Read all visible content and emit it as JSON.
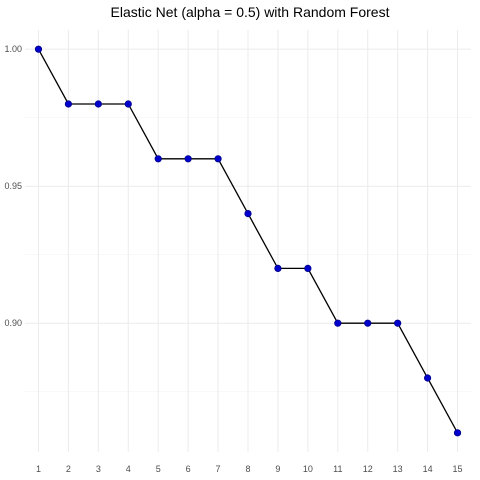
{
  "chart_data": {
    "type": "line",
    "title": "Elastic Net (alpha = 0.5) with Random Forest",
    "xlabel": "",
    "ylabel": "",
    "x": [
      1,
      2,
      3,
      4,
      5,
      6,
      7,
      8,
      9,
      10,
      11,
      12,
      13,
      14,
      15
    ],
    "series": [
      {
        "values": [
          1.0,
          0.98,
          0.98,
          0.98,
          0.96,
          0.96,
          0.96,
          0.94,
          0.92,
          0.92,
          0.9,
          0.9,
          0.9,
          0.88,
          0.86
        ],
        "color": "#0000cd",
        "line_color": "#000000"
      }
    ],
    "xticks": [
      "1",
      "2",
      "3",
      "4",
      "5",
      "6",
      "7",
      "8",
      "9",
      "10",
      "11",
      "12",
      "13",
      "14",
      "15"
    ],
    "yticks": [
      0.9,
      0.95,
      1.0
    ],
    "ytick_labels": [
      "0.90",
      "0.95",
      "1.00"
    ],
    "xlim": [
      0.55,
      15.45
    ],
    "ylim": [
      0.853,
      1.007
    ],
    "grid": true
  }
}
